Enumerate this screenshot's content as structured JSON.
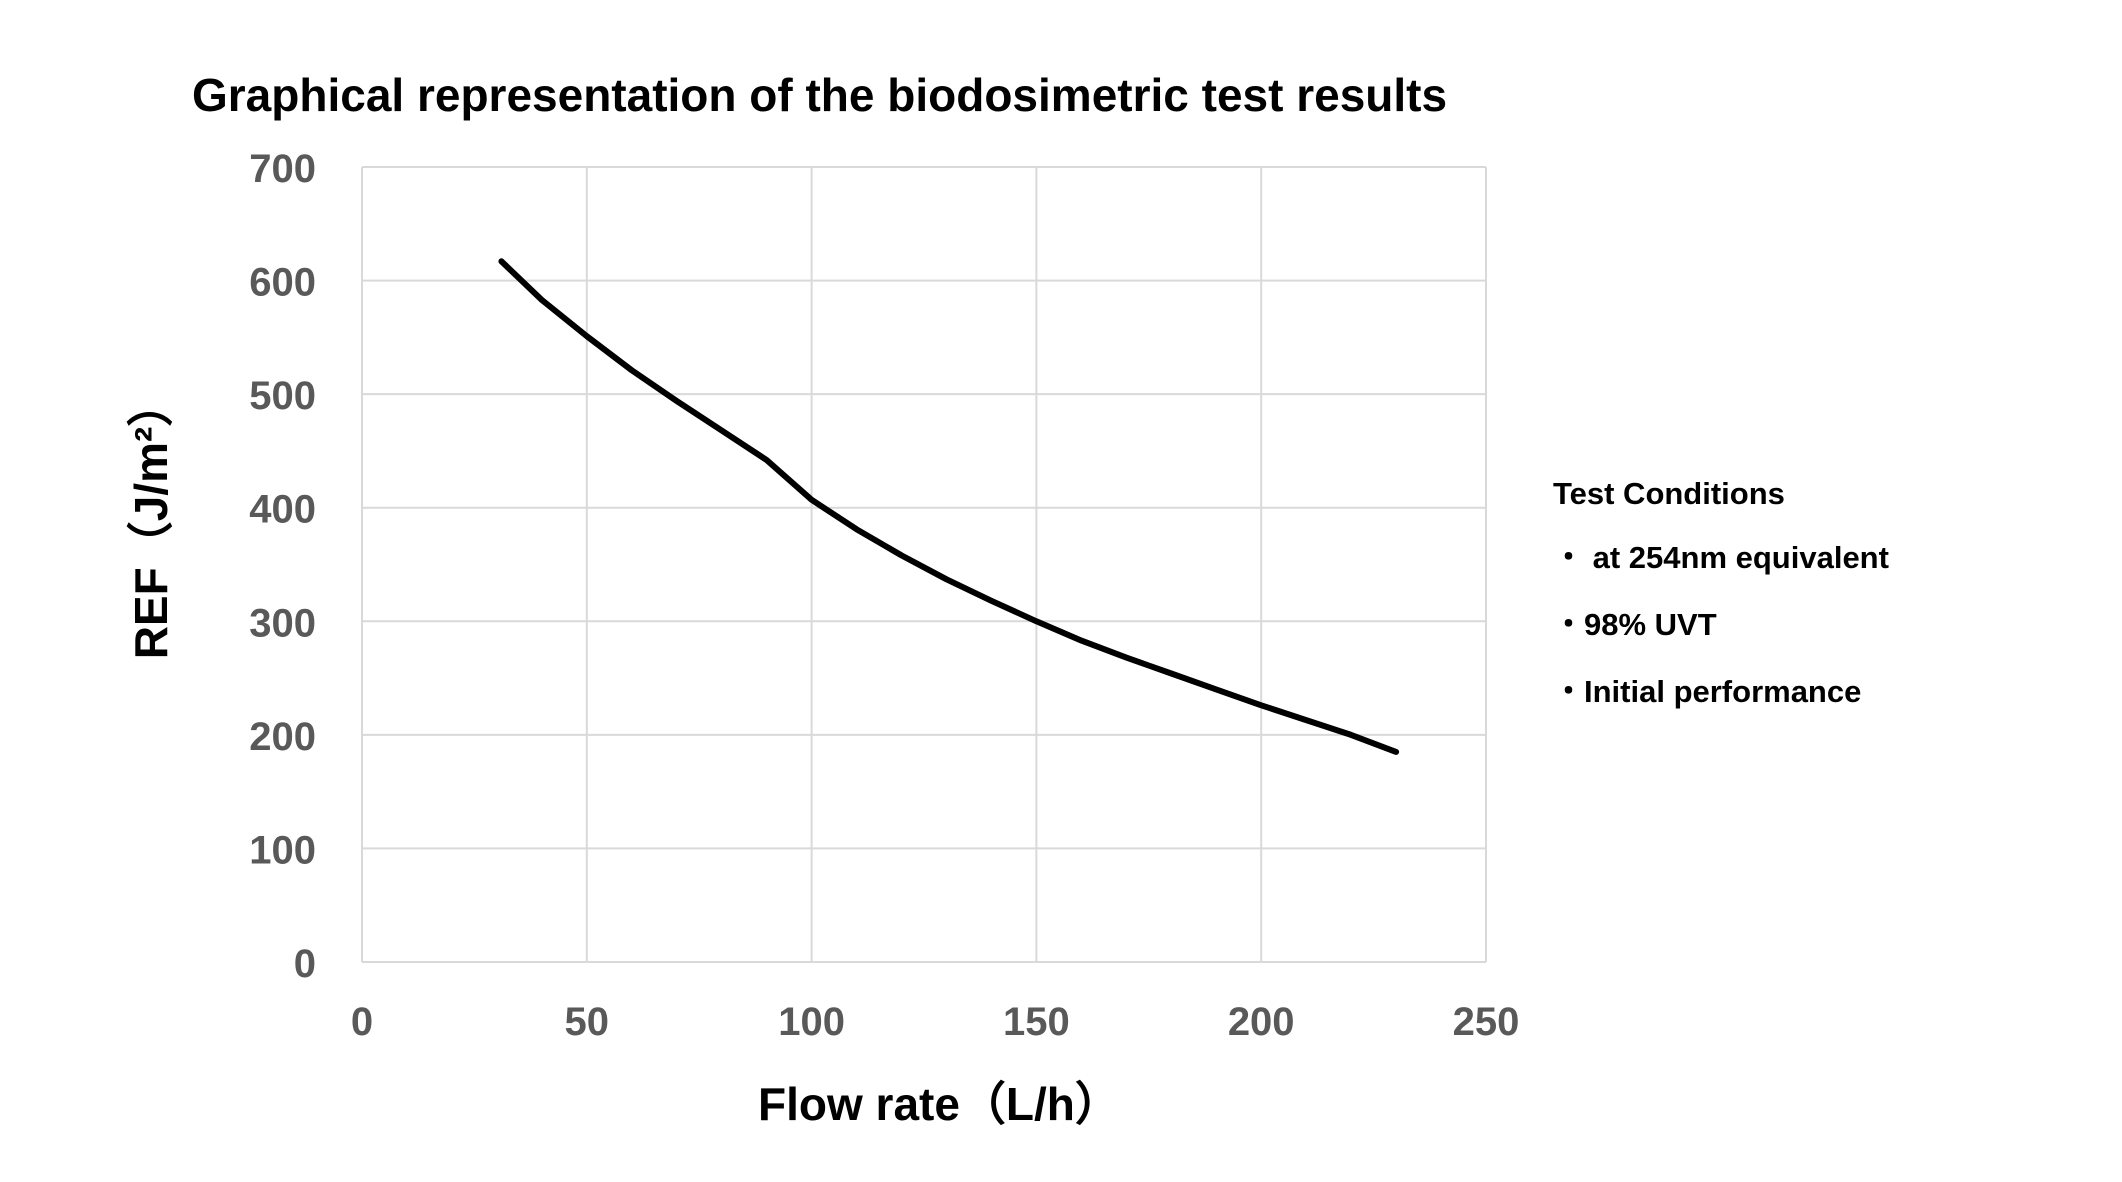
{
  "chart_data": {
    "type": "line",
    "title": "Graphical representation of the biodosimetric test results",
    "xlabel": "Flow rate（L/h）",
    "ylabel": "REF（J/m²）",
    "xlim": [
      0,
      250
    ],
    "ylim": [
      0,
      700
    ],
    "x_ticks": [
      "0",
      "50",
      "100",
      "150",
      "200",
      "250"
    ],
    "y_ticks": [
      "0",
      "100",
      "200",
      "300",
      "400",
      "500",
      "600",
      "700"
    ],
    "grid": true,
    "series": [
      {
        "color": "#000000",
        "x": [
          31,
          40,
          50,
          60,
          70,
          80,
          90,
          100,
          110,
          120,
          130,
          140,
          150,
          160,
          170,
          180,
          190,
          200,
          210,
          220,
          230
        ],
        "y": [
          617,
          583,
          551,
          521,
          494,
          468,
          442,
          407,
          381,
          358,
          337,
          318,
          300,
          283,
          268,
          254,
          240,
          226,
          213,
          200,
          185
        ]
      }
    ],
    "annotations": {
      "heading": "Test Conditions",
      "items": [
        "・ at 254nm equivalent",
        "・98% UVT",
        "・Initial performance"
      ]
    }
  }
}
